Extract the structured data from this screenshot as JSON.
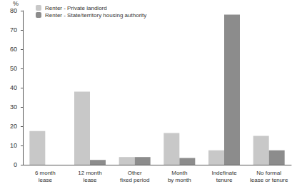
{
  "chart_data": {
    "type": "bar",
    "y_label": "%",
    "categories": [
      "6 month\nlease",
      "12 month\nlease",
      "Other\nfixed period",
      "Month\nby month",
      "Indefinate\ntenure",
      "No formal\nlease or tenure"
    ],
    "series": [
      {
        "name": "Renter - Private landlord",
        "color": "#c8c8c8",
        "values": [
          17.5,
          38,
          4,
          16.5,
          7.5,
          15
        ]
      },
      {
        "name": "Renter - State/territory housing authority",
        "color": "#8c8c8c",
        "values": [
          0,
          2.5,
          4,
          3.5,
          78,
          7.5
        ]
      }
    ],
    "ylim": [
      0,
      80
    ],
    "yticks": [
      0,
      10,
      20,
      30,
      40,
      50,
      60,
      70,
      80
    ],
    "grid": false,
    "legend": "upper left"
  }
}
